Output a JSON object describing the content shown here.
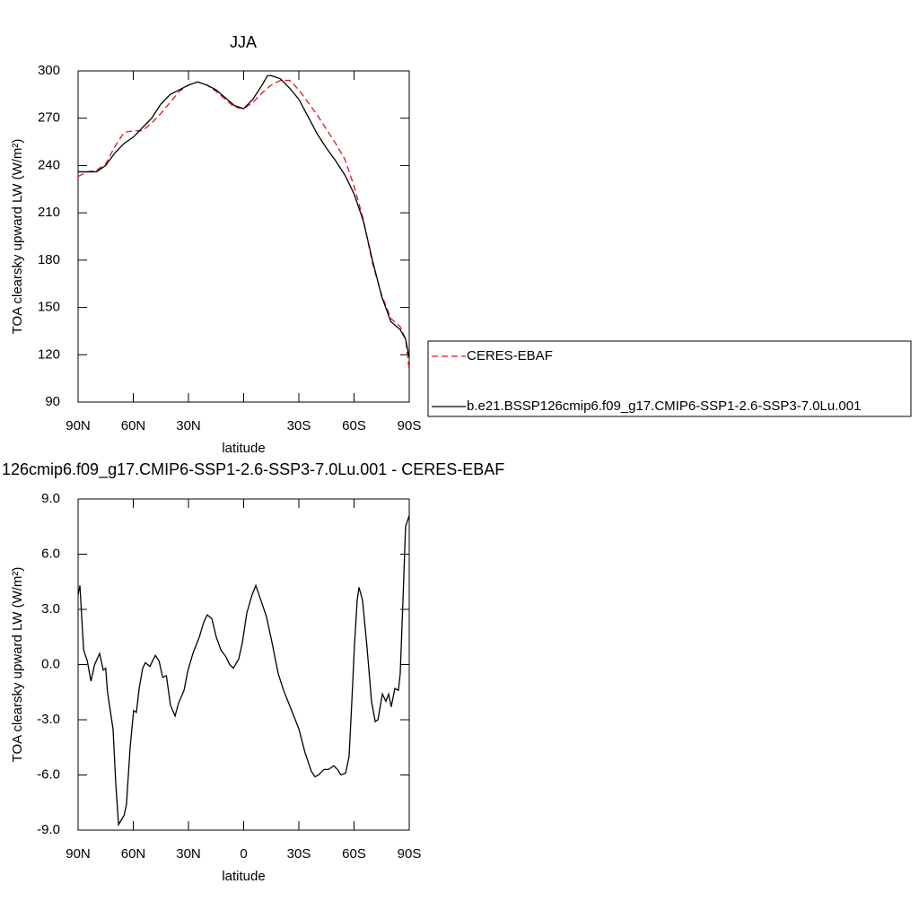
{
  "chart_data": [
    {
      "type": "line",
      "title": "JJA",
      "xlabel": "latitude",
      "ylabel": "TOA clearsky upward LW (W/m²)",
      "xlim": [
        90,
        -90
      ],
      "ylim": [
        90,
        300
      ],
      "xticks": [
        {
          "value": 90,
          "label": "90N"
        },
        {
          "value": 60,
          "label": "60N"
        },
        {
          "value": 30,
          "label": "30N"
        },
        {
          "value": 0,
          "label": null
        },
        {
          "value": -30,
          "label": "30S"
        },
        {
          "value": -60,
          "label": "60S"
        },
        {
          "value": -90,
          "label": "90S"
        }
      ],
      "yticks": [
        90,
        120,
        150,
        180,
        210,
        240,
        270,
        300
      ],
      "legend": "right",
      "series": [
        {
          "name": "CERES-EBAF",
          "color": "#e0141e",
          "dash": true,
          "x": [
            90,
            85,
            80,
            75,
            70,
            65,
            60,
            55,
            50,
            45,
            40,
            35,
            30,
            25,
            20,
            15,
            10,
            5,
            0,
            -5,
            -10,
            -15,
            -20,
            -25,
            -30,
            -35,
            -40,
            -45,
            -50,
            -55,
            -60,
            -65,
            -70,
            -75,
            -80,
            -85,
            -88,
            -90
          ],
          "values": [
            233,
            236,
            237,
            241,
            252,
            261,
            262,
            262,
            267,
            273,
            280,
            287,
            291,
            293,
            291,
            287,
            282,
            277,
            276,
            280,
            286,
            291,
            294,
            294,
            288,
            280,
            272,
            263,
            254,
            244,
            227,
            206,
            178,
            158,
            143,
            138,
            130,
            110
          ]
        },
        {
          "name": "b.e21.BSSP126cmip6.f09_g17.CMIP6-SSP1-2.6-SSP3-7.0Lu.001",
          "color": "#000000",
          "dash": false,
          "x": [
            90,
            85,
            80,
            75,
            70,
            65,
            60,
            55,
            50,
            45,
            40,
            35,
            30,
            25,
            20,
            15,
            10,
            5,
            0,
            -5,
            -10,
            -13,
            -15,
            -20,
            -25,
            -30,
            -35,
            -40,
            -45,
            -50,
            -55,
            -60,
            -65,
            -70,
            -75,
            -80,
            -85,
            -88,
            -90
          ],
          "values": [
            236,
            236,
            236,
            240,
            248,
            254,
            258,
            264,
            270,
            279,
            285,
            288,
            291,
            293,
            291,
            288,
            283,
            278,
            276,
            282,
            291,
            297,
            297,
            295,
            289,
            282,
            271,
            260,
            251,
            243,
            234,
            222,
            205,
            180,
            157,
            141,
            136,
            130,
            118
          ]
        }
      ]
    },
    {
      "type": "line",
      "title": "126cmip6.f09_g17.CMIP6-SSP1-2.6-SSP3-7.0Lu.001 - CERES-EBAF",
      "xlabel": "latitude",
      "ylabel": "TOA clearsky upward LW (W/m²)",
      "xlim": [
        90,
        -90
      ],
      "ylim": [
        -9,
        9
      ],
      "xticks": [
        {
          "value": 90,
          "label": "90N"
        },
        {
          "value": 60,
          "label": "60N"
        },
        {
          "value": 30,
          "label": "30N"
        },
        0,
        {
          "value": -30,
          "label": "30S"
        },
        {
          "value": -60,
          "label": "60S"
        },
        {
          "value": -90,
          "label": "90S"
        }
      ],
      "yticks": [
        {
          "value": -9,
          "label": "-9.0"
        },
        {
          "value": -6,
          "label": "-6.0"
        },
        {
          "value": -3,
          "label": "-3.0"
        },
        {
          "value": 0,
          "label": "0.0"
        },
        {
          "value": 3,
          "label": "3.0"
        },
        {
          "value": 6,
          "label": "6.0"
        },
        {
          "value": 9,
          "label": "9.0"
        }
      ],
      "series": [
        {
          "color": "#000000",
          "dash": false,
          "x": [
            90,
            89,
            87,
            85,
            83,
            81,
            78.3,
            76.3,
            75,
            74,
            71,
            69.5,
            68,
            65,
            63.7,
            61.7,
            59.8,
            58.3,
            56.8,
            54.9,
            53.4,
            51,
            48,
            46,
            44,
            42,
            39.8,
            37.3,
            35.4,
            32.4,
            30.5,
            27.6,
            24.1,
            21.7,
            19.8,
            17.3,
            14.9,
            12.4,
            9.5,
            7.6,
            5.6,
            2.7,
            0.7,
            -1.7,
            -4.6,
            -6.6,
            -9,
            -12.4,
            -15.4,
            -18.8,
            -21.7,
            -26.1,
            -30,
            -33.4,
            -36.8,
            -38.8,
            -40.7,
            -43.7,
            -46.1,
            -49,
            -51,
            -52.9,
            -55.4,
            -57.3,
            -58.8,
            -60.2,
            -61.7,
            -62.7,
            -64.6,
            -67,
            -69.5,
            -71.5,
            -73,
            -75.4,
            -77.3,
            -78.8,
            -80.2,
            -82.2,
            -84.1,
            -85.1,
            -86.6,
            -88,
            -90
          ],
          "values": [
            3.8,
            4.3,
            0.8,
            0.2,
            -0.9,
            0,
            0.6,
            -0.3,
            -0.2,
            -1.5,
            -3.5,
            -6.5,
            -8.7,
            -8.2,
            -7.6,
            -4.5,
            -2.5,
            -2.6,
            -1.3,
            -0.2,
            0.1,
            -0.1,
            0.5,
            0.2,
            -0.7,
            -0.6,
            -2.2,
            -2.8,
            -2.1,
            -1.4,
            -0.4,
            0.6,
            1.5,
            2.3,
            2.7,
            2.5,
            1.5,
            0.8,
            0.4,
            0,
            -0.2,
            0.3,
            1.2,
            2.8,
            3.8,
            4.3,
            3.6,
            2.6,
            1.2,
            -0.5,
            -1.4,
            -2.5,
            -3.5,
            -4.8,
            -5.8,
            -6.1,
            -6.0,
            -5.7,
            -5.7,
            -5.5,
            -5.7,
            -6.0,
            -5.9,
            -5.0,
            -2.0,
            1.0,
            3.5,
            4.2,
            3.5,
            1.0,
            -2.0,
            -3.1,
            -3.0,
            -1.6,
            -2.0,
            -1.6,
            -2.3,
            -1.3,
            -1.4,
            -0.5,
            3.5,
            7.5,
            8.1
          ]
        }
      ]
    }
  ]
}
